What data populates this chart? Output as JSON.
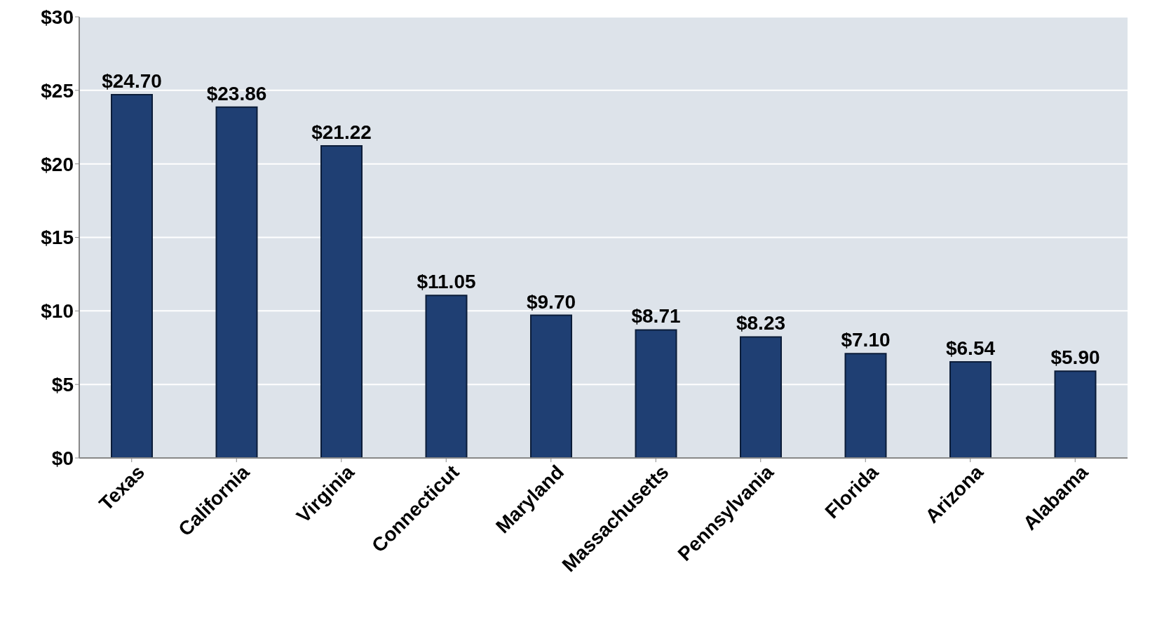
{
  "chart_data": {
    "type": "bar",
    "categories": [
      "Texas",
      "California",
      "Virginia",
      "Connecticut",
      "Maryland",
      "Massachusetts",
      "Pennsylvania",
      "Florida",
      "Arizona",
      "Alabama"
    ],
    "values": [
      24.7,
      23.86,
      21.22,
      11.05,
      9.7,
      8.71,
      8.23,
      7.1,
      6.54,
      5.9
    ],
    "value_labels": [
      "$24.70",
      "$23.86",
      "$21.22",
      "$11.05",
      "$9.70",
      "$8.71",
      "$8.23",
      "$7.10",
      "$6.54",
      "$5.90"
    ],
    "color": "#1f3f73",
    "ylim": [
      0,
      30
    ],
    "yticks": [
      {
        "value": 0,
        "label": "$0"
      },
      {
        "value": 5,
        "label": "$5"
      },
      {
        "value": 10,
        "label": "$10"
      },
      {
        "value": 15,
        "label": "$15"
      },
      {
        "value": 20,
        "label": "$20"
      },
      {
        "value": 25,
        "label": "$25"
      },
      {
        "value": 30,
        "label": "$30"
      }
    ],
    "grid": "y"
  }
}
